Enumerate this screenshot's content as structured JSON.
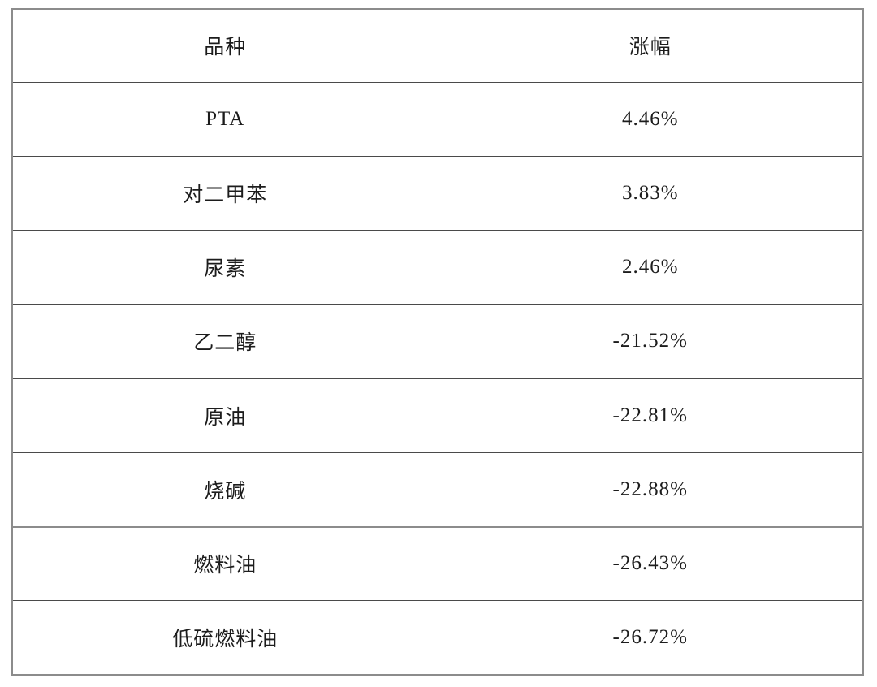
{
  "table": {
    "columns": [
      {
        "label": "品种"
      },
      {
        "label": "涨幅"
      }
    ],
    "rows": [
      {
        "variety": "PTA",
        "change": "4.46%"
      },
      {
        "variety": "对二甲苯",
        "change": "3.83%"
      },
      {
        "variety": "尿素",
        "change": "2.46%"
      },
      {
        "variety": "乙二醇",
        "change": "-21.52%"
      },
      {
        "variety": "原油",
        "change": "-22.81%"
      },
      {
        "variety": "烧碱",
        "change": "-22.88%"
      },
      {
        "variety": "燃料油",
        "change": "-26.43%"
      },
      {
        "variety": "低硫燃料油",
        "change": "-26.72%"
      }
    ]
  }
}
